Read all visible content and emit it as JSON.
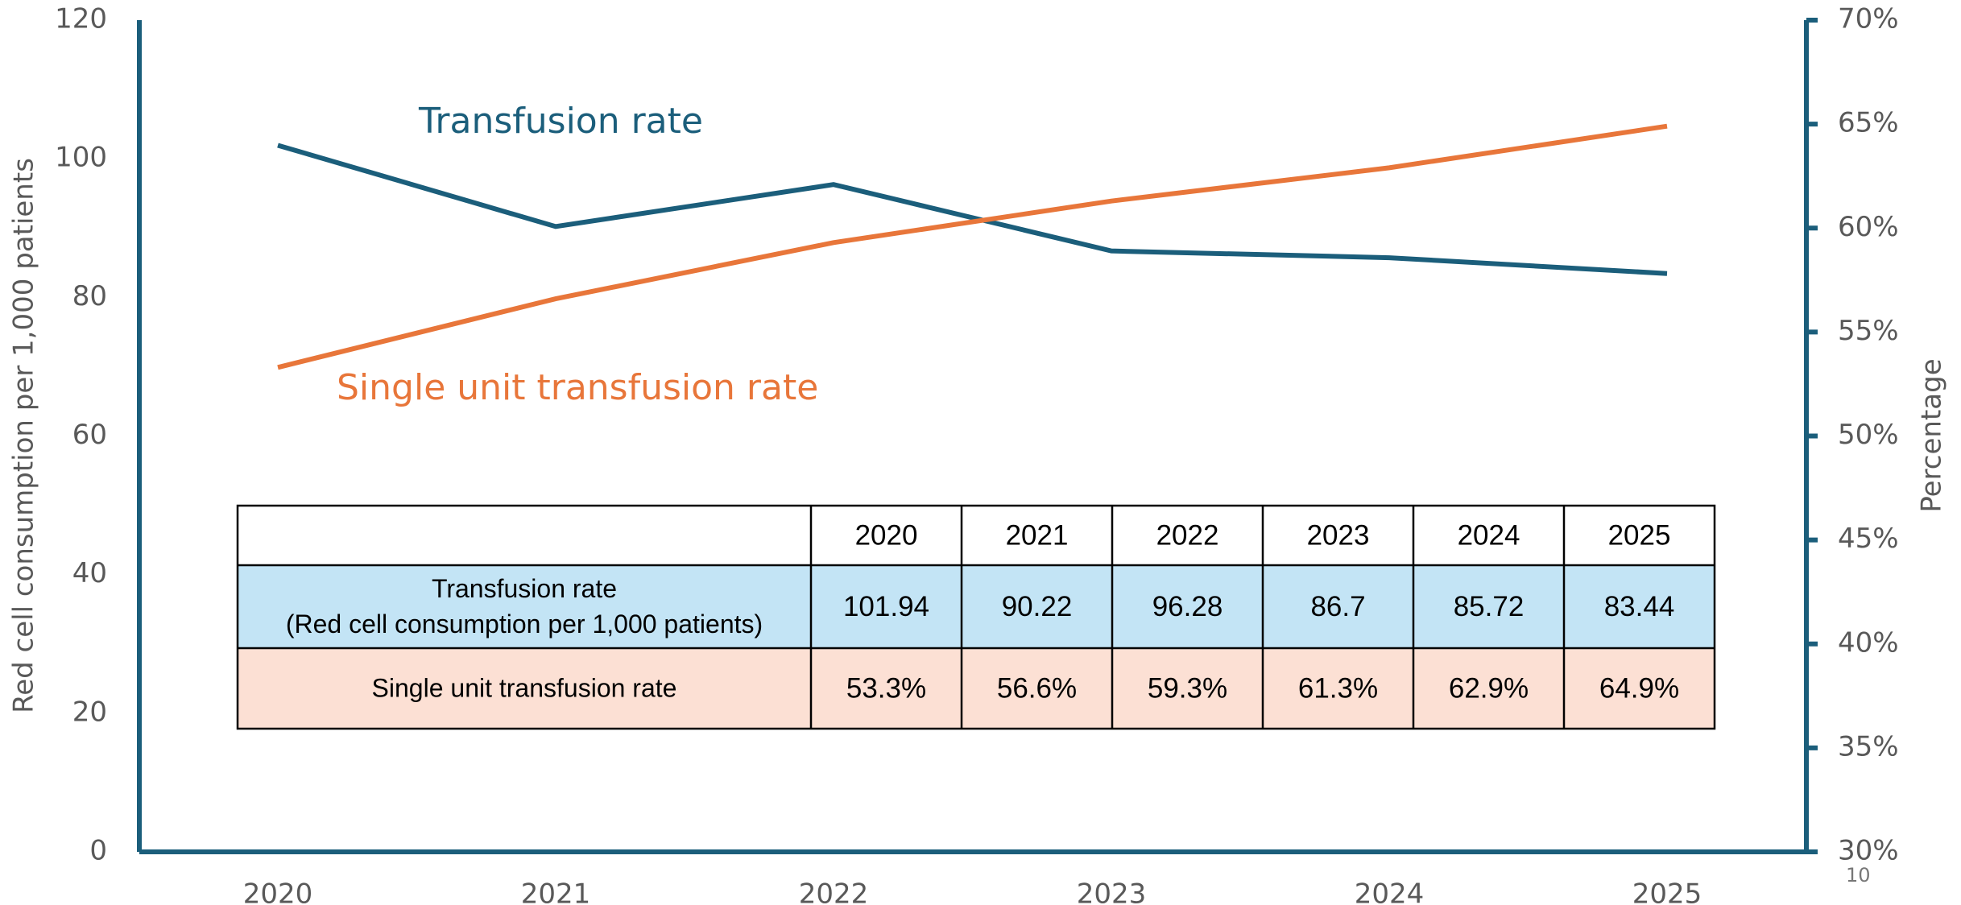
{
  "chart_data": {
    "type": "line",
    "categories": [
      "2020",
      "2021",
      "2022",
      "2023",
      "2024",
      "2025"
    ],
    "y_label": "Red cell consumption per 1,000 patients",
    "y2_label": "Percentage",
    "ylim": [
      0,
      120
    ],
    "yticks": [
      0,
      20,
      40,
      60,
      80,
      100,
      120
    ],
    "y2lim": [
      30,
      70
    ],
    "y2ticks": [
      {
        "value": 30,
        "label": "30%"
      },
      {
        "value": 35,
        "label": "35%"
      },
      {
        "value": 40,
        "label": "40%"
      },
      {
        "value": 45,
        "label": "45%"
      },
      {
        "value": 50,
        "label": "50%"
      },
      {
        "value": 55,
        "label": "55%"
      },
      {
        "value": 60,
        "label": "60%"
      },
      {
        "value": 65,
        "label": "65%"
      },
      {
        "value": 70,
        "label": "70%"
      }
    ],
    "axis_color": "#1b5e7b",
    "series": [
      {
        "name": "Transfusion rate",
        "color": "#1b5e7b",
        "values": [
          101.94,
          90.22,
          96.28,
          86.7,
          85.72,
          83.44
        ]
      },
      {
        "name": "Single unit transfusion rate",
        "color": "#e8763a",
        "axis": "y2",
        "values": [
          53.3,
          56.6,
          59.3,
          61.3,
          62.9,
          64.9
        ],
        "value_labels": [
          "53.3%",
          "56.6%",
          "59.3%",
          "61.3%",
          "62.9%",
          "64.9%"
        ]
      }
    ],
    "table": {
      "row_labels": [
        [
          "Transfusion rate",
          "(Red cell consumption per 1,000 patients)"
        ],
        [
          "Single unit transfusion rate"
        ]
      ],
      "row_colors": [
        "#c3e4f5",
        "#fce0d4"
      ]
    },
    "page_number": "10"
  }
}
